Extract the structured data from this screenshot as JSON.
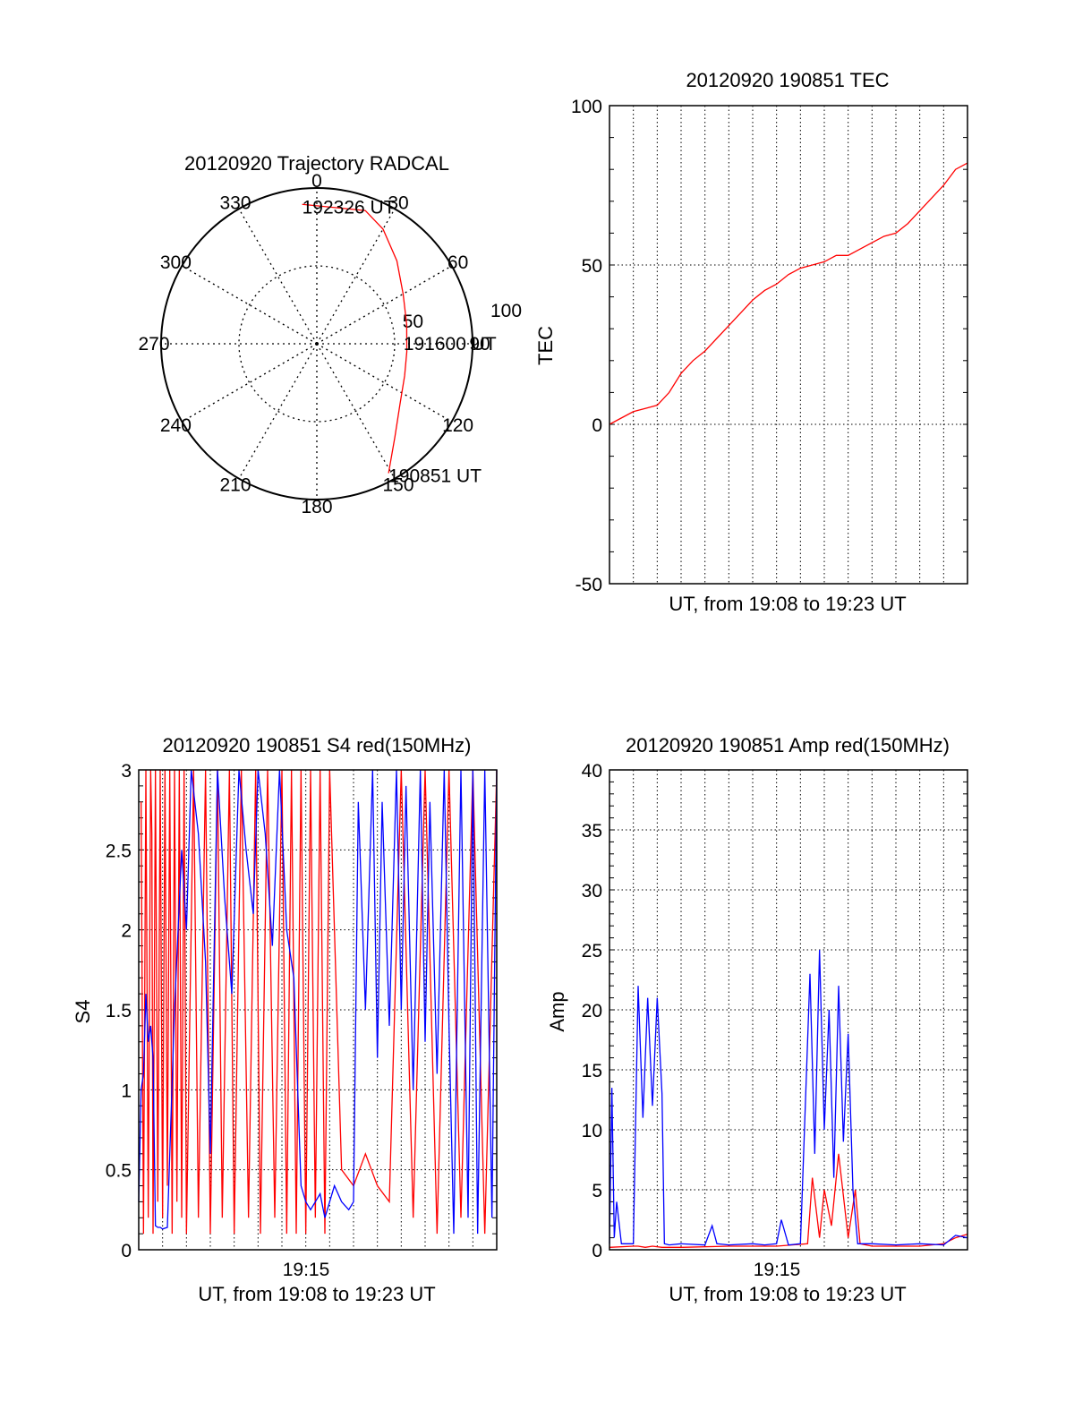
{
  "colors": {
    "red": "#ff0000",
    "blue": "#0000ff",
    "axis": "#000000",
    "grid": "#000000"
  },
  "chart_data": [
    {
      "type": "polar",
      "title": "20120920 Trajectory RADCAL",
      "angle_labels": [
        "0",
        "30",
        "60",
        "90",
        "120",
        "150",
        "180",
        "210",
        "240",
        "270",
        "300",
        "330"
      ],
      "radial_labels": [
        "50",
        "100"
      ],
      "rlim": [
        0,
        100
      ],
      "grid": true,
      "series": [
        {
          "color": "red",
          "points": [
            {
              "az": 151,
              "r": 95
            },
            {
              "az": 140,
              "r": 78
            },
            {
              "az": 126,
              "r": 66
            },
            {
              "az": 110,
              "r": 60
            },
            {
              "az": 95,
              "r": 58
            },
            {
              "az": 78,
              "r": 59
            },
            {
              "az": 60,
              "r": 64
            },
            {
              "az": 44,
              "r": 74
            },
            {
              "az": 30,
              "r": 85
            },
            {
              "az": 20,
              "r": 91
            },
            {
              "az": 354,
              "r": 90
            }
          ]
        }
      ],
      "annotations": [
        {
          "text": "192326 UT",
          "az": 354,
          "r": 90
        },
        {
          "text": "191600 UT",
          "az": 100,
          "r": 60
        },
        {
          "text": "190851 UT",
          "az": 151,
          "r": 95
        }
      ]
    },
    {
      "type": "line",
      "title": "20120920 190851 TEC",
      "ylabel": "TEC",
      "xlabel": "UT, from 19:08 to 19:23 UT",
      "ylim": [
        -50,
        100
      ],
      "yticks": [
        "-50",
        "0",
        "50",
        "100"
      ],
      "xlim": [
        0,
        15
      ],
      "grid": true,
      "series": [
        {
          "color": "red",
          "x": [
            0,
            0.5,
            1,
            1.5,
            2,
            2.5,
            3,
            3.5,
            4,
            4.5,
            5,
            5.5,
            6,
            6.5,
            7,
            7.5,
            8,
            8.5,
            9,
            9.5,
            10,
            10.5,
            11,
            11.5,
            12,
            12.5,
            13,
            13.5,
            14,
            14.5,
            15
          ],
          "y": [
            0,
            2,
            4,
            5,
            6,
            10,
            16,
            20,
            23,
            27,
            31,
            35,
            39,
            42,
            44,
            47,
            49,
            50,
            51,
            53,
            53,
            55,
            57,
            59,
            60,
            63,
            67,
            71,
            75,
            80,
            82
          ]
        }
      ]
    },
    {
      "type": "line",
      "title": "20120920 190851 S4 red(150MHz)",
      "ylabel": "S4",
      "xlabel": "UT, from 19:08 to 19:23 UT",
      "ylim": [
        0,
        3
      ],
      "yticks": [
        "0",
        "0.5",
        "1",
        "1.5",
        "2",
        "2.5",
        "3"
      ],
      "xtick_labels": [
        "19:15"
      ],
      "xlim": [
        0,
        15
      ],
      "grid": true,
      "series": [
        {
          "color": "red",
          "x": [
            0.1,
            0.2,
            0.3,
            0.4,
            0.5,
            0.55,
            0.6,
            0.7,
            0.8,
            0.9,
            1.0,
            1.1,
            1.2,
            1.3,
            1.4,
            1.5,
            1.6,
            1.7,
            1.8,
            1.9,
            2.0,
            2.3,
            2.5,
            2.8,
            3.0,
            3.3,
            3.5,
            3.8,
            4.0,
            4.3,
            4.6,
            4.9,
            5.1,
            5.4,
            5.7,
            6.0,
            6.2,
            6.4,
            6.6,
            6.8,
            7.0,
            7.2,
            7.4,
            7.6,
            7.8,
            8.0,
            8.5,
            9.0,
            9.5,
            10.0,
            10.5,
            11.0,
            11.5,
            12.0,
            12.5,
            13.0,
            13.5,
            14.0,
            14.5,
            15.0
          ],
          "y": [
            2.8,
            0.1,
            3.0,
            0.2,
            3.0,
            2.6,
            0.1,
            3.0,
            0.3,
            3.0,
            0.2,
            3.0,
            0.4,
            3.0,
            0.1,
            3.0,
            0.3,
            3.0,
            0.2,
            3.0,
            0.1,
            3.0,
            0.2,
            3.0,
            0.1,
            3.0,
            0.2,
            3.0,
            0.1,
            3.0,
            0.2,
            3.0,
            0.1,
            3.0,
            0.2,
            3.0,
            0.1,
            3.0,
            0.1,
            3.0,
            0.1,
            3.0,
            0.2,
            3.0,
            0.1,
            3.0,
            0.5,
            0.4,
            0.6,
            0.4,
            0.3,
            3.0,
            0.2,
            3.0,
            0.1,
            3.0,
            0.2,
            3.0,
            0.1,
            3.0
          ]
        },
        {
          "color": "blue",
          "x": [
            0.0,
            0.1,
            0.2,
            0.3,
            0.4,
            0.5,
            0.6,
            0.7,
            0.8,
            0.9,
            1.0,
            1.2,
            1.5,
            1.8,
            2.0,
            2.2,
            2.5,
            2.8,
            3.0,
            3.3,
            3.6,
            3.9,
            4.2,
            4.5,
            4.8,
            5.0,
            5.3,
            5.6,
            5.9,
            6.2,
            6.5,
            6.8,
            7.0,
            7.2,
            7.4,
            7.6,
            7.8,
            8.0,
            8.2,
            8.5,
            8.8,
            9.0,
            9.2,
            9.5,
            9.8,
            10.0,
            10.2,
            10.5,
            10.8,
            11.0,
            11.2,
            11.5,
            11.8,
            12.0,
            12.2,
            12.5,
            12.8,
            13.0,
            13.2,
            13.5,
            13.8,
            14.0,
            14.2,
            14.5,
            14.8,
            15.0
          ],
          "y": [
            0.3,
            1.0,
            1.1,
            1.6,
            1.3,
            1.4,
            1.2,
            0.15,
            0.14,
            0.14,
            0.13,
            0.14,
            1.5,
            2.5,
            2.0,
            3.0,
            2.6,
            1.8,
            0.6,
            3.0,
            2.2,
            1.6,
            3.0,
            2.5,
            2.1,
            3.0,
            2.6,
            1.9,
            3.0,
            2.0,
            1.7,
            0.4,
            0.3,
            0.25,
            0.3,
            0.35,
            0.2,
            0.3,
            0.4,
            0.3,
            0.25,
            0.3,
            2.8,
            1.5,
            3.0,
            1.2,
            2.8,
            1.4,
            3.0,
            1.5,
            2.9,
            1.0,
            3.0,
            1.3,
            2.8,
            1.1,
            3.0,
            1.4,
            0.1,
            3.0,
            0.2,
            3.0,
            0.1,
            3.0,
            0.2,
            3.0
          ]
        }
      ]
    },
    {
      "type": "line",
      "title": "20120920 190851 Amp red(150MHz)",
      "ylabel": "Amp",
      "xlabel": "UT, from 19:08 to 19:23 UT",
      "ylim": [
        0,
        40
      ],
      "yticks": [
        "0",
        "5",
        "10",
        "15",
        "20",
        "25",
        "30",
        "35",
        "40"
      ],
      "xtick_labels": [
        "19:15"
      ],
      "xlim": [
        0,
        15
      ],
      "grid": true,
      "series": [
        {
          "color": "red",
          "x": [
            0,
            1,
            1.2,
            1.5,
            1.8,
            2.2,
            3,
            5,
            7,
            8.3,
            8.5,
            8.8,
            9.0,
            9.3,
            9.6,
            10.0,
            10.3,
            10.5,
            11,
            12,
            13,
            14,
            14.5,
            15
          ],
          "y": [
            0.2,
            0.3,
            0.3,
            0.2,
            0.3,
            0.2,
            0.2,
            0.3,
            0.3,
            0.5,
            6,
            1,
            5,
            2,
            8,
            1,
            5,
            0.5,
            0.3,
            0.3,
            0.3,
            0.5,
            1.0,
            1.3
          ]
        },
        {
          "color": "blue",
          "x": [
            0,
            0.1,
            0.2,
            0.3,
            0.5,
            1.0,
            1.2,
            1.4,
            1.6,
            1.8,
            2.0,
            2.2,
            2.3,
            2.5,
            3,
            4,
            4.3,
            4.5,
            5,
            6,
            6.5,
            7,
            7.2,
            7.5,
            8,
            8.4,
            8.6,
            8.8,
            9.0,
            9.2,
            9.4,
            9.6,
            9.8,
            10.0,
            10.2,
            10.4,
            11,
            12,
            13,
            14,
            14.5,
            15
          ],
          "y": [
            0.5,
            13.5,
            1,
            4,
            0.5,
            0.5,
            22,
            11,
            21,
            12,
            21,
            13,
            0.5,
            0.4,
            0.5,
            0.4,
            2,
            0.5,
            0.4,
            0.5,
            0.4,
            0.5,
            2.5,
            0.4,
            0.5,
            23,
            8,
            25,
            10,
            20,
            6,
            22,
            9,
            18,
            5,
            0.5,
            0.5,
            0.4,
            0.5,
            0.4,
            1.2,
            1.0
          ]
        }
      ]
    }
  ]
}
